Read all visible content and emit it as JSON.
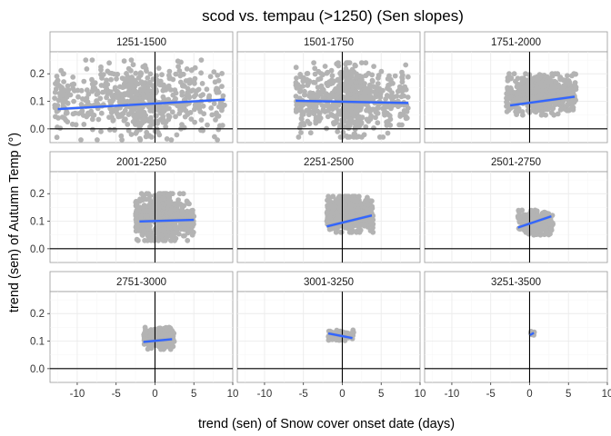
{
  "chart_data": {
    "type": "scatter",
    "title": "scod vs. tempau (>1250) (Sen slopes)",
    "xlabel": "trend (sen) of Snow cover onset date (days)",
    "ylabel": "trend (sen) of Autumn Temp (°)",
    "xlim": [
      -13.5,
      10
    ],
    "ylim": [
      -0.05,
      0.28
    ],
    "x_ticks": [
      -10,
      -5,
      0,
      5,
      10
    ],
    "y_ticks": [
      0.0,
      0.1,
      0.2
    ],
    "x_tick_labels": [
      "-10",
      "-5",
      "0",
      "5",
      "10"
    ],
    "y_tick_labels": [
      "0.0",
      "0.1",
      "0.2"
    ],
    "reference_lines": {
      "x": 0,
      "y": 0
    },
    "grid": true,
    "point_color": "#b3b3b3",
    "trend_color": "#3366ff",
    "layout": {
      "rows": 3,
      "cols": 3,
      "facet_by": "elevation band"
    },
    "panels": [
      {
        "label": "1251-1500",
        "x_range": [
          -13,
          9
        ],
        "point_y_range": [
          -0.04,
          0.25
        ],
        "trend": {
          "x": [
            -12.5,
            9
          ],
          "y": [
            0.072,
            0.106
          ]
        }
      },
      {
        "label": "1501-1750",
        "x_range": [
          -6,
          8.5
        ],
        "point_y_range": [
          -0.03,
          0.24
        ],
        "trend": {
          "x": [
            -6,
            8.5
          ],
          "y": [
            0.102,
            0.094
          ]
        }
      },
      {
        "label": "1751-2000",
        "x_range": [
          -3,
          6
        ],
        "point_y_range": [
          0.05,
          0.2
        ],
        "trend": {
          "x": [
            -2.5,
            5.8
          ],
          "y": [
            0.085,
            0.117
          ]
        }
      },
      {
        "label": "2001-2250",
        "x_range": [
          -2.5,
          5
        ],
        "point_y_range": [
          0.03,
          0.2
        ],
        "trend": {
          "x": [
            -2,
            5
          ],
          "y": [
            0.099,
            0.105
          ]
        }
      },
      {
        "label": "2251-2500",
        "x_range": [
          -2,
          4
        ],
        "point_y_range": [
          0.06,
          0.19
        ],
        "trend": {
          "x": [
            -2,
            3.8
          ],
          "y": [
            0.081,
            0.121
          ]
        }
      },
      {
        "label": "2501-2750",
        "x_range": [
          -1.5,
          3
        ],
        "point_y_range": [
          0.05,
          0.14
        ],
        "trend": {
          "x": [
            -1.5,
            2.8
          ],
          "y": [
            0.077,
            0.118
          ]
        }
      },
      {
        "label": "2751-3000",
        "x_range": [
          -1.5,
          2.5
        ],
        "point_y_range": [
          0.07,
          0.15
        ],
        "trend": {
          "x": [
            -1.5,
            2.2
          ],
          "y": [
            0.097,
            0.107
          ]
        }
      },
      {
        "label": "3001-3250",
        "x_range": [
          -1.8,
          1.5
        ],
        "point_y_range": [
          0.1,
          0.14
        ],
        "trend": {
          "x": [
            -1.8,
            1.3
          ],
          "y": [
            0.128,
            0.111
          ]
        }
      },
      {
        "label": "3251-3500",
        "x_range": [
          0,
          0.7
        ],
        "point_y_range": [
          0.118,
          0.135
        ],
        "trend": {
          "x": [
            0.05,
            0.55
          ],
          "y": [
            0.122,
            0.13
          ]
        }
      }
    ]
  }
}
